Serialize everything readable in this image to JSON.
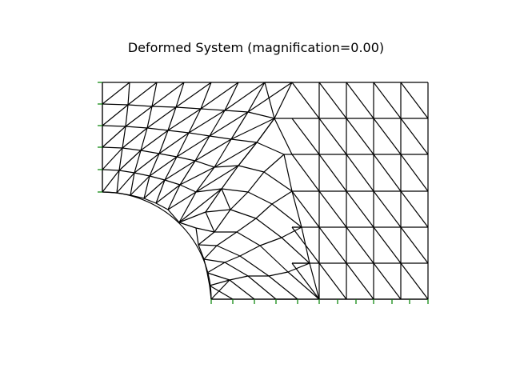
{
  "figure": {
    "title": "Deformed System (magnification=0.00)"
  },
  "colors": {
    "mesh": "#000000",
    "support": "#008000",
    "background": "#ffffff"
  }
}
